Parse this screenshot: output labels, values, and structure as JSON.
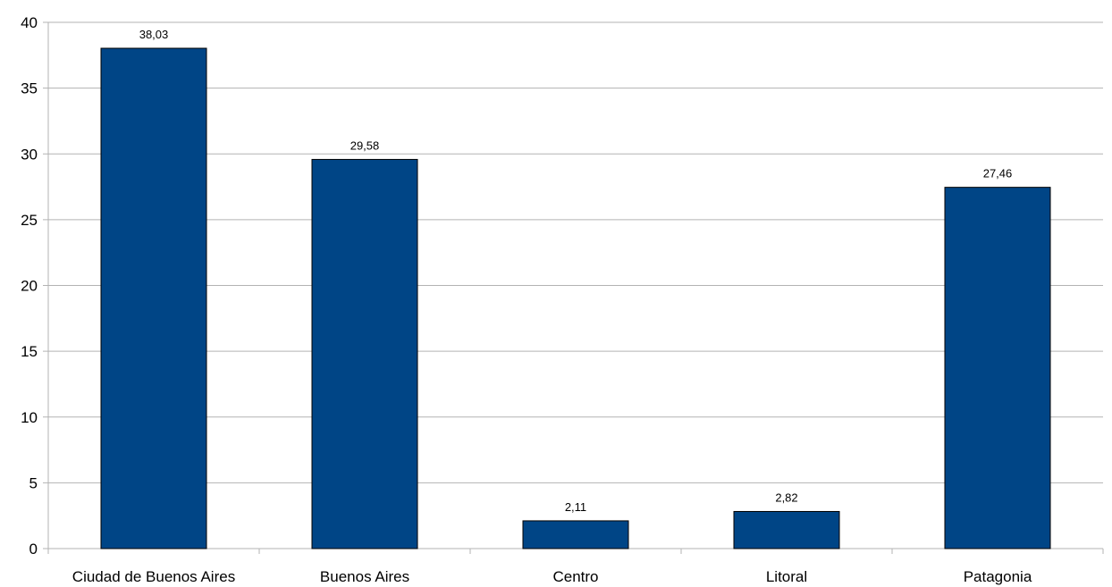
{
  "chart_data": {
    "type": "bar",
    "categories": [
      "Ciudad de Buenos Aires",
      "Buenos Aires",
      "Centro",
      "Litoral",
      "Patagonia"
    ],
    "values": [
      38.03,
      29.58,
      2.11,
      2.82,
      27.46
    ],
    "data_labels": [
      "38,03",
      "29,58",
      "2,11",
      "2,82",
      "27,46"
    ],
    "y_ticks": [
      0,
      5,
      10,
      15,
      20,
      25,
      30,
      35,
      40
    ],
    "ylim": [
      0,
      40
    ],
    "grid": true,
    "bar_color": "#004586",
    "grid_color": "#b3b3b3"
  }
}
